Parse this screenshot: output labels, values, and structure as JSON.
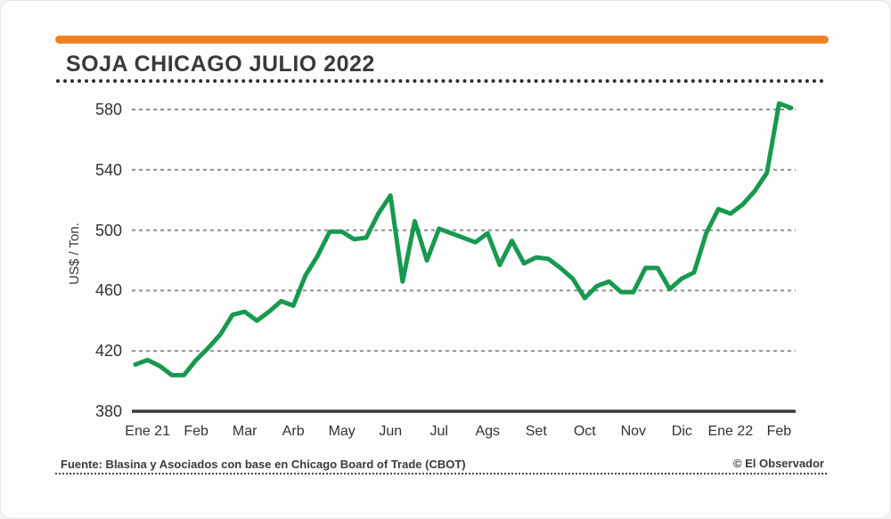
{
  "header": {
    "title": "SOJA CHICAGO JULIO 2022",
    "accent_color": "#ef8220"
  },
  "footer": {
    "source": "Fuente: Blasina y Asociados con base en Chicago Board of Trade (CBOT)",
    "credit": "© El Observador"
  },
  "chart_data": {
    "type": "line",
    "title": "SOJA CHICAGO JULIO 2022",
    "xlabel": "",
    "ylabel": "US$ / Ton.",
    "ylim": [
      380,
      590
    ],
    "yticks": [
      380,
      420,
      460,
      500,
      540,
      580
    ],
    "grid": "horizontal-dashed",
    "legend": "none",
    "line_color": "#17994f",
    "baseline_color": "#3a3a3a",
    "gridline_color": "#8f8f8f",
    "x_tick_labels": [
      "Ene 21",
      "Feb",
      "Mar",
      "Arb",
      "May",
      "Jun",
      "Jul",
      "Ags",
      "Set",
      "Oct",
      "Nov",
      "Dic",
      "Ene 22",
      "Feb"
    ],
    "x_tick_week_index": [
      1,
      5,
      9,
      13,
      17,
      21,
      25,
      29,
      33,
      37,
      41,
      45,
      49,
      53
    ],
    "series": [
      {
        "name": "Soja Chicago Julio 2022",
        "unit": "US$/Ton",
        "frequency": "weekly",
        "values": [
          411,
          414,
          410,
          404,
          404,
          414,
          422,
          431,
          444,
          446,
          440,
          446,
          453,
          450,
          470,
          483,
          499,
          499,
          494,
          495,
          511,
          523,
          466,
          506,
          480,
          501,
          498,
          495,
          492,
          498,
          477,
          493,
          478,
          482,
          481,
          475,
          468,
          455,
          463,
          466,
          459,
          459,
          475,
          475,
          461,
          468,
          472,
          498,
          514,
          511,
          517,
          526,
          538,
          584,
          581
        ]
      }
    ]
  }
}
